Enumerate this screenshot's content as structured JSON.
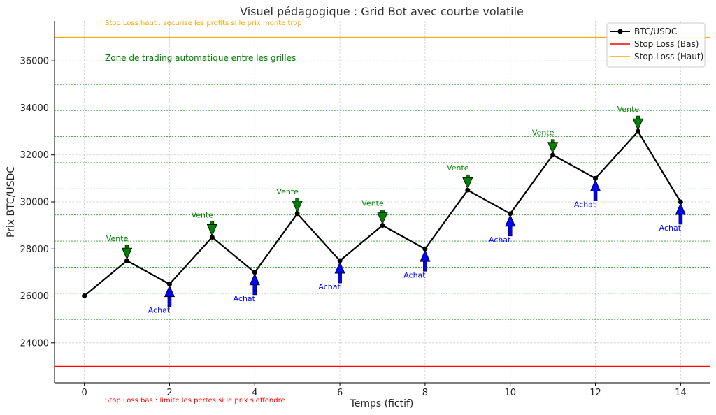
{
  "chart_data": {
    "type": "line",
    "title": "Visuel pédagogique : Grid Bot avec courbe volatile",
    "xlabel": "Temps (fictif)",
    "ylabel": "Prix BTC/USDC",
    "xlim": [
      -0.7,
      14.7
    ],
    "ylim": [
      22300,
      37700
    ],
    "xticks": [
      0,
      2,
      4,
      6,
      8,
      10,
      12,
      14
    ],
    "yticks": [
      24000,
      26000,
      28000,
      30000,
      32000,
      34000,
      36000
    ],
    "grid": true,
    "legend_position": "top-right",
    "series": [
      {
        "name": "BTC/USDC",
        "color": "#000000",
        "x": [
          0,
          1,
          2,
          3,
          4,
          5,
          6,
          7,
          8,
          9,
          10,
          11,
          12,
          13,
          14
        ],
        "y": [
          26000,
          27500,
          26500,
          28500,
          27000,
          29500,
          27500,
          29000,
          28000,
          30500,
          29500,
          32000,
          31000,
          33000,
          30000
        ]
      }
    ],
    "reference_lines": [
      {
        "name": "Stop Loss (Bas)",
        "y": 23000,
        "color": "#ff0000"
      },
      {
        "name": "Stop Loss (Haut)",
        "y": 37000,
        "color": "#ffa500"
      }
    ],
    "grid_levels": [
      25000,
      26111,
      27222,
      28333,
      29444,
      30556,
      31667,
      32778,
      33889,
      35000
    ],
    "grid_level_color": "#2e9e2e",
    "sell_signals": {
      "label": "Vente",
      "color": "#008000",
      "points": [
        {
          "x": 1,
          "y": 27500
        },
        {
          "x": 3,
          "y": 28500
        },
        {
          "x": 5,
          "y": 29500
        },
        {
          "x": 7,
          "y": 29000
        },
        {
          "x": 9,
          "y": 30500
        },
        {
          "x": 11,
          "y": 32000
        },
        {
          "x": 13,
          "y": 33000
        }
      ]
    },
    "buy_signals": {
      "label": "Achat",
      "color": "#0000ff",
      "points": [
        {
          "x": 2,
          "y": 26500
        },
        {
          "x": 4,
          "y": 27000
        },
        {
          "x": 6,
          "y": 27500
        },
        {
          "x": 8,
          "y": 28000
        },
        {
          "x": 10,
          "y": 29500
        },
        {
          "x": 12,
          "y": 31000
        },
        {
          "x": 14,
          "y": 30000
        }
      ]
    },
    "annotations": {
      "stop_high": {
        "text": "Stop Loss haut : sécurise les profits si le prix monte trop",
        "color": "#ffa500"
      },
      "zone": {
        "text": "Zone de trading automatique entre les grilles",
        "color": "#008000"
      },
      "stop_low": {
        "text": "Stop Loss bas : limite les pertes si le prix s'effondre",
        "color": "#ff0000"
      }
    },
    "legend": [
      {
        "label": "BTC/USDC",
        "color": "#000000",
        "marker": "circle"
      },
      {
        "label": "Stop Loss (Bas)",
        "color": "#ff0000",
        "marker": "none"
      },
      {
        "label": "Stop Loss (Haut)",
        "color": "#ffa500",
        "marker": "none"
      }
    ]
  }
}
